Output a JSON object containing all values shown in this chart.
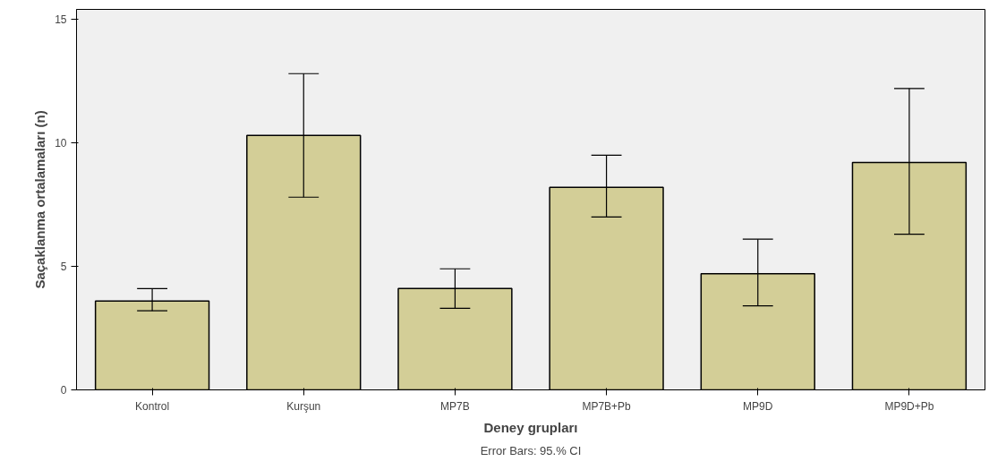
{
  "chart_data": {
    "type": "bar",
    "xlabel": "Deney grupları",
    "ylabel": "Saçaklanma ortalamaları (n)",
    "categories": [
      "Kontrol",
      "Kurşun",
      "MP7B",
      "MP7B+Pb",
      "MP9D",
      "MP9D+Pb"
    ],
    "values": [
      3.6,
      10.3,
      4.1,
      8.2,
      4.7,
      9.2
    ],
    "errors": [
      [
        3.2,
        4.1
      ],
      [
        7.8,
        12.8
      ],
      [
        3.3,
        4.9
      ],
      [
        7.0,
        9.5
      ],
      [
        3.4,
        6.1
      ],
      [
        6.3,
        12.2
      ]
    ],
    "color": "#d3ce97",
    "ylim": [
      0,
      15.4
    ],
    "yticks": [
      0,
      5,
      10,
      15
    ],
    "grid": false,
    "annotations": [
      "Error Bars: 95.% CI"
    ]
  }
}
